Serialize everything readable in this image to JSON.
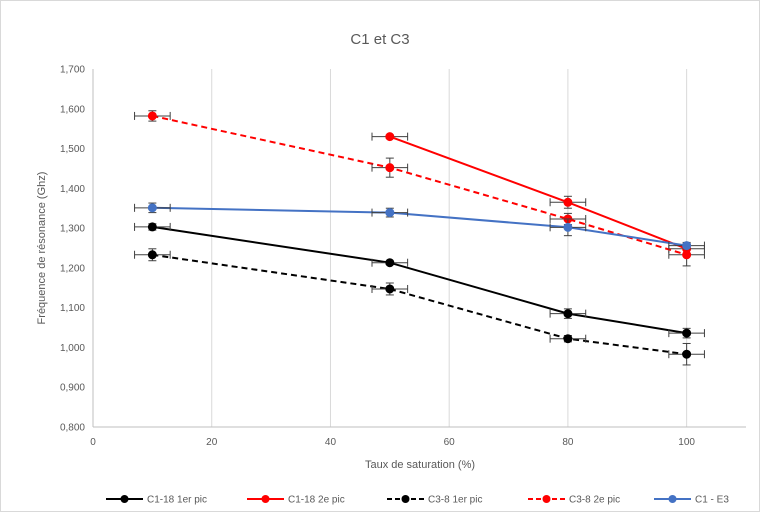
{
  "chart_data": {
    "type": "scatter",
    "title": "C1 et C3",
    "xlabel": "Taux de saturation (%)",
    "ylabel": "Fréquence de résonance (Ghz)",
    "xlim": [
      0,
      110
    ],
    "ylim": [
      0.8,
      1.7
    ],
    "x_ticks": [
      0,
      20,
      40,
      60,
      80,
      100
    ],
    "x_tick_labels": [
      "0",
      "20",
      "40",
      "60",
      "80",
      "100"
    ],
    "y_ticks": [
      0.8,
      0.9,
      1.0,
      1.1,
      1.2,
      1.3,
      1.4,
      1.5,
      1.6,
      1.7
    ],
    "y_tick_labels": [
      "0,800",
      "0,900",
      "1,000",
      "1,100",
      "1,200",
      "1,300",
      "1,400",
      "1,500",
      "1,600",
      "1,700"
    ],
    "grid": "vertical",
    "legend_position": "bottom",
    "series": [
      {
        "name": "C1-18 1er pic",
        "color": "#000000",
        "dashed": false,
        "x": [
          10,
          50,
          80,
          100
        ],
        "y": [
          1.303,
          1.213,
          1.085,
          1.036
        ],
        "xerr": [
          3,
          3,
          3,
          3
        ],
        "yerr": [
          0.008,
          0.004,
          0.012,
          0.012
        ]
      },
      {
        "name": "C1-18 2e pic",
        "color": "#ff0000",
        "dashed": false,
        "x": [
          50,
          80,
          100
        ],
        "y": [
          1.53,
          1.365,
          1.248
        ],
        "xerr": [
          3,
          3,
          3
        ],
        "yerr": [
          0.004,
          0.015,
          0.012
        ]
      },
      {
        "name": "C3-8 1er pic",
        "color": "#000000",
        "dashed": true,
        "x": [
          10,
          50,
          80,
          100
        ],
        "y": [
          1.233,
          1.147,
          1.022,
          0.983
        ],
        "xerr": [
          3,
          3,
          3,
          3
        ],
        "yerr": [
          0.015,
          0.015,
          0.008,
          0.027
        ]
      },
      {
        "name": "C3-8 2e pic",
        "color": "#ff0000",
        "dashed": true,
        "x": [
          10,
          50,
          80,
          100
        ],
        "y": [
          1.582,
          1.452,
          1.323,
          1.233
        ],
        "xerr": [
          3,
          3,
          3,
          3
        ],
        "yerr": [
          0.013,
          0.024,
          0.014,
          0.028
        ]
      },
      {
        "name": "C1 - E3",
        "color": "#4472c4",
        "dashed": false,
        "x": [
          10,
          50,
          80,
          100
        ],
        "y": [
          1.351,
          1.339,
          1.302,
          1.256
        ],
        "xerr": [
          3,
          3,
          3,
          3
        ],
        "yerr": [
          0.012,
          0.011,
          0.021,
          0.008
        ]
      }
    ]
  }
}
